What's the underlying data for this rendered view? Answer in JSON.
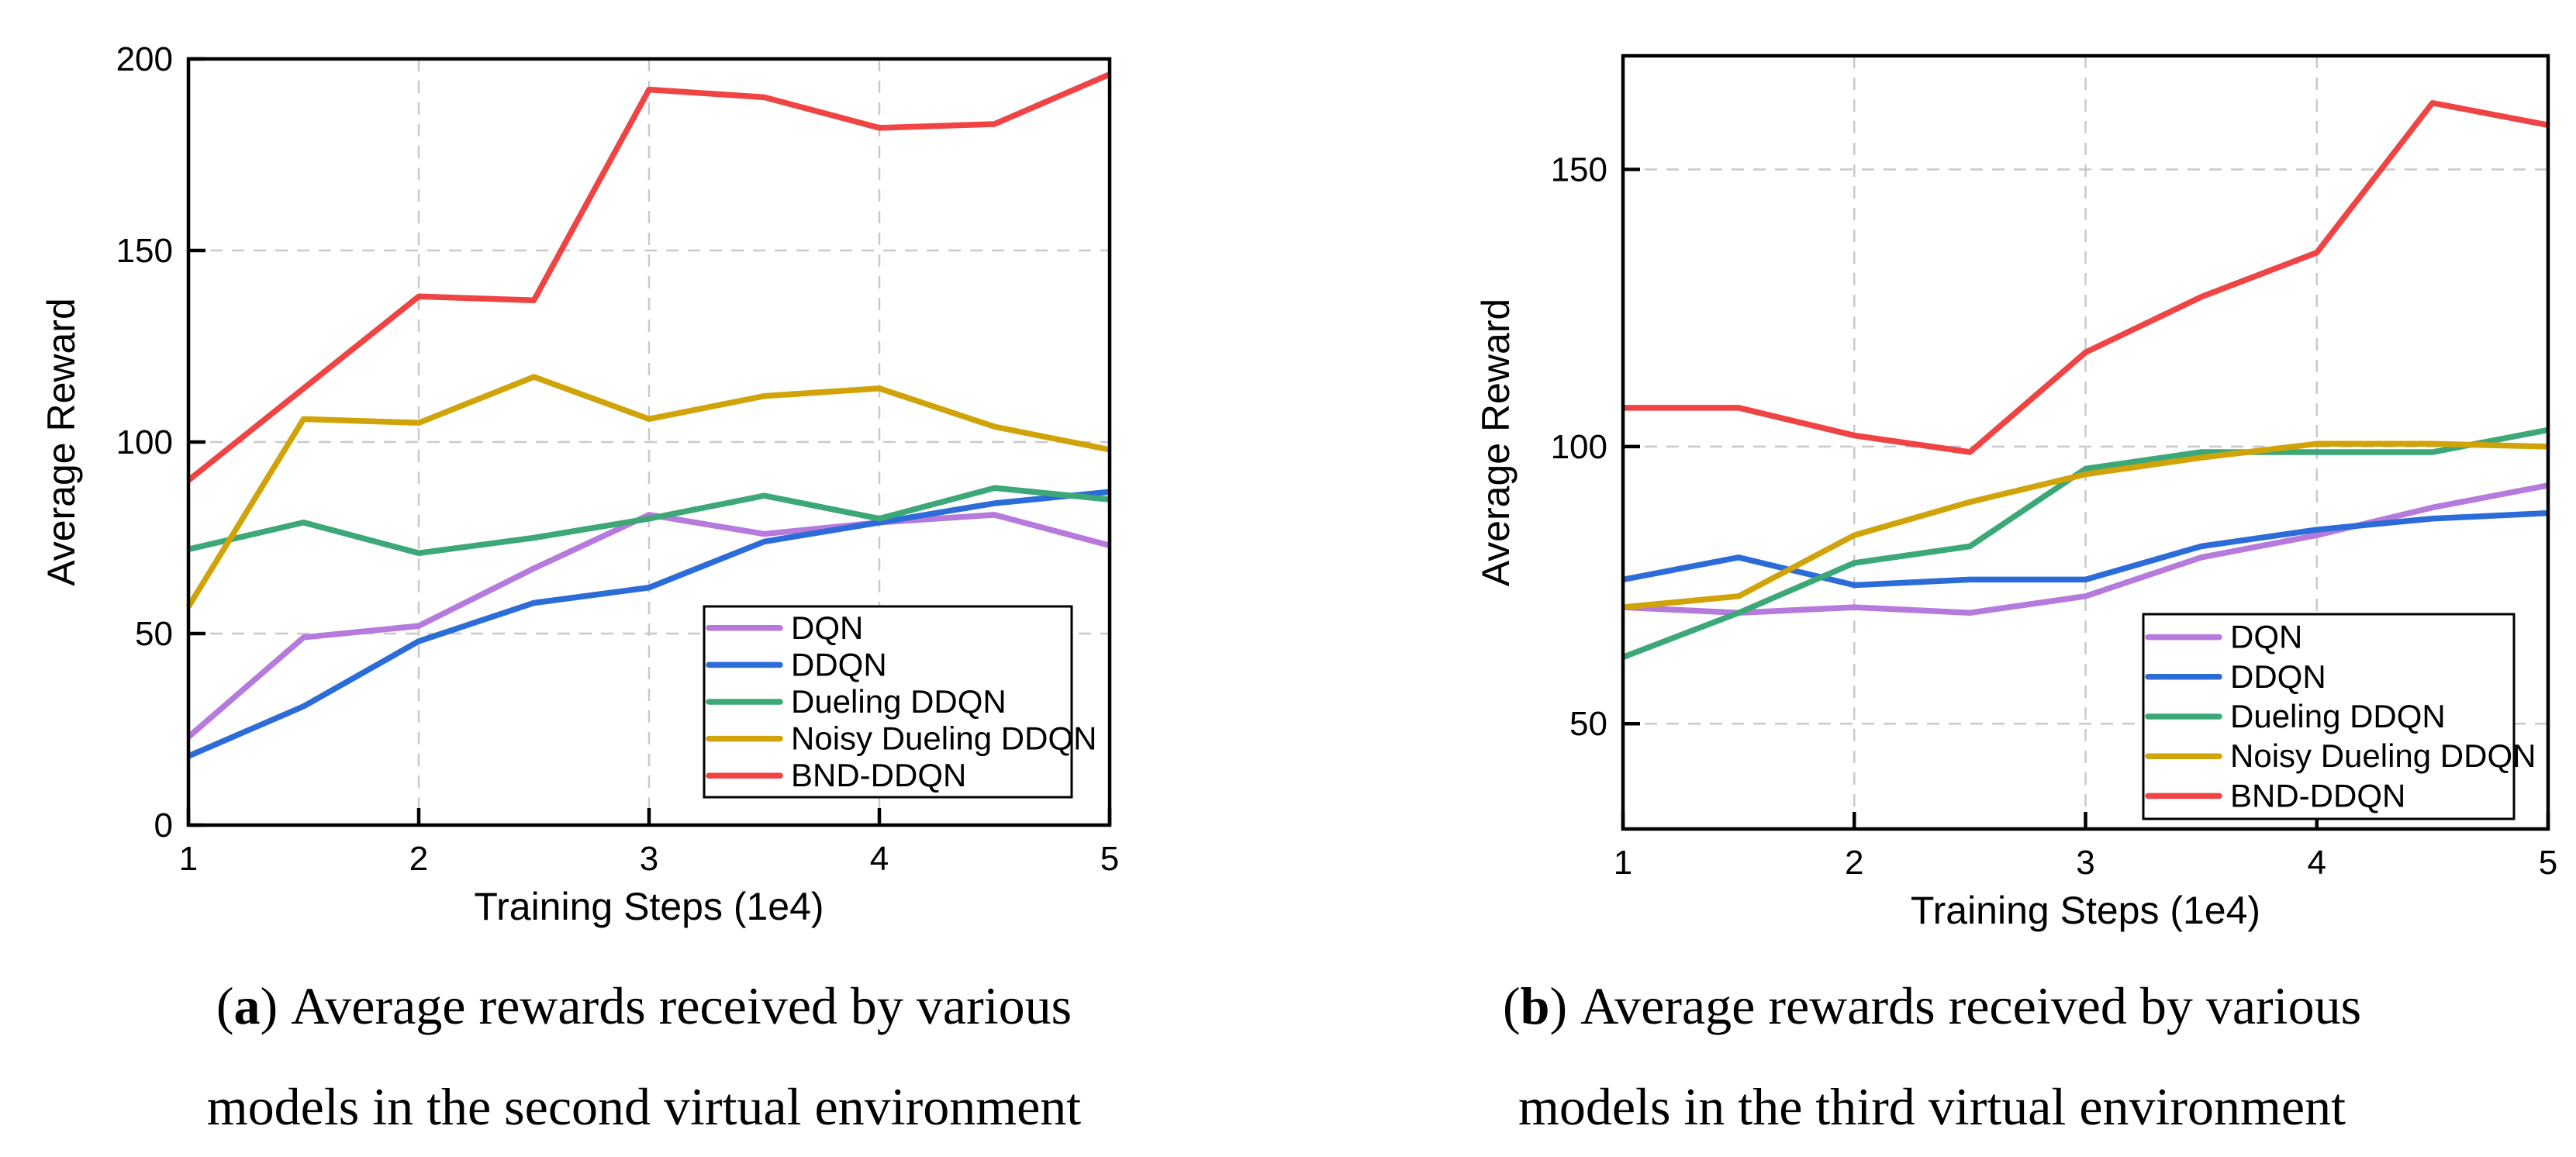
{
  "figure": {
    "panels": [
      {
        "id": "a",
        "caption": {
          "tag": "a",
          "line1": "Average rewards received by various",
          "line2": "models in the second virtual environment"
        }
      },
      {
        "id": "b",
        "caption": {
          "tag": "b",
          "line1": "Average rewards received by various",
          "line2": "models in the third virtual environment"
        }
      }
    ]
  },
  "chart_data": [
    {
      "type": "line",
      "panel": "a",
      "title": "",
      "xlabel": "Training Steps (1e4)",
      "ylabel": "Average Reward",
      "x": [
        1,
        1.5,
        2,
        2.5,
        3,
        3.5,
        4,
        4.5,
        5
      ],
      "xlim": [
        1,
        5
      ],
      "ylim": [
        0,
        200
      ],
      "xticks": [
        1,
        2,
        3,
        4,
        5
      ],
      "yticks": [
        0,
        50,
        100,
        150,
        200
      ],
      "grid": "dashed",
      "legend_position": "lower right",
      "series": [
        {
          "name": "DQN",
          "color": "#b679dc",
          "values": [
            23,
            49,
            52,
            67,
            81,
            76,
            79,
            81,
            73
          ]
        },
        {
          "name": "DDQN",
          "color": "#2c6cd9",
          "values": [
            18,
            31,
            48,
            58,
            62,
            74,
            79,
            84,
            87
          ]
        },
        {
          "name": "Dueling DDQN",
          "color": "#3ca877",
          "values": [
            72,
            79,
            71,
            75,
            80,
            86,
            80,
            88,
            85
          ]
        },
        {
          "name": "Noisy Dueling DDQN",
          "color": "#d0a408",
          "values": [
            57,
            106,
            105,
            117,
            106,
            112,
            114,
            104,
            98
          ]
        },
        {
          "name": "BND-DDQN",
          "color": "#f04343",
          "values": [
            90,
            114,
            138,
            137,
            192,
            190,
            182,
            183,
            196
          ]
        }
      ]
    },
    {
      "type": "line",
      "panel": "b",
      "title": "",
      "xlabel": "Training Steps (1e4)",
      "ylabel": "Average Reward",
      "x": [
        1,
        1.5,
        2,
        2.5,
        3,
        3.5,
        4,
        4.5,
        5
      ],
      "xlim": [
        1,
        5
      ],
      "ylim": [
        31,
        170.5
      ],
      "xticks": [
        1,
        2,
        3,
        4,
        5
      ],
      "yticks": [
        50,
        100,
        150
      ],
      "grid": "dashed",
      "legend_position": "lower right",
      "series": [
        {
          "name": "DQN",
          "color": "#b679dc",
          "values": [
            71,
            70,
            71,
            70,
            73,
            80,
            84,
            89,
            93
          ]
        },
        {
          "name": "DDQN",
          "color": "#2c6cd9",
          "values": [
            76,
            80,
            75,
            76,
            76,
            82,
            85,
            87,
            88
          ]
        },
        {
          "name": "Dueling DDQN",
          "color": "#3ca877",
          "values": [
            62,
            70,
            79,
            82,
            96,
            99,
            99,
            99,
            103
          ]
        },
        {
          "name": "Noisy Dueling DDQN",
          "color": "#d0a408",
          "values": [
            71,
            73,
            84,
            90,
            95,
            98,
            100.5,
            100.5,
            100
          ]
        },
        {
          "name": "BND-DDQN",
          "color": "#f04343",
          "values": [
            107,
            107,
            102,
            99,
            117,
            127,
            135,
            162,
            158
          ]
        }
      ]
    }
  ],
  "style": {
    "grid_color": "#c9c9c9",
    "spine_color": "#000000",
    "legend_border_color": "#000000",
    "legend_fill": "#ffffff",
    "text_color": "#000000"
  }
}
